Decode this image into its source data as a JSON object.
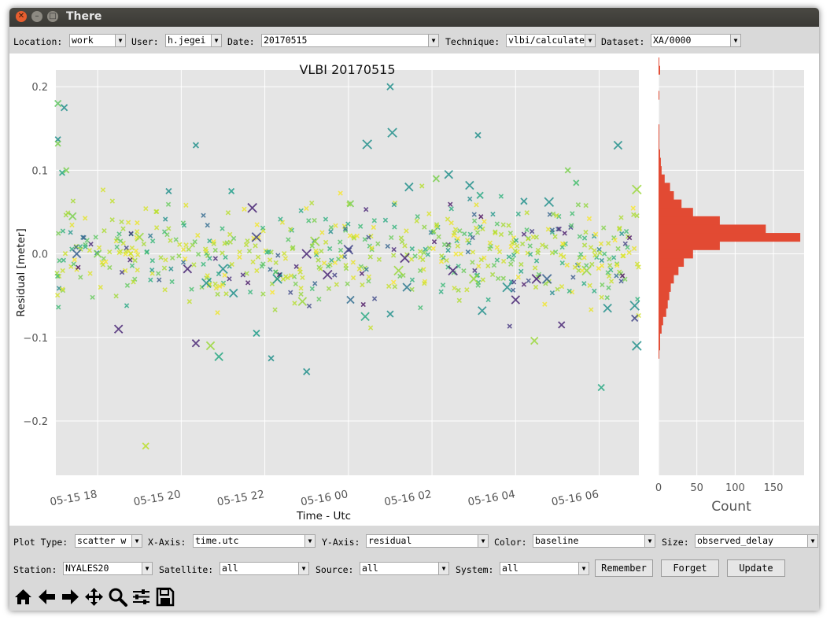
{
  "window": {
    "title": "There"
  },
  "top_bar": {
    "location_label": "Location:",
    "location_value": "work",
    "user_label": "User:",
    "user_value": "h.jegei",
    "date_label": "Date:",
    "date_value": "20170515",
    "technique_label": "Technique:",
    "technique_value": "vlbi/calculate",
    "dataset_label": "Dataset:",
    "dataset_value": "XA/0000"
  },
  "controls_row1": {
    "plot_type_label": "Plot Type:",
    "plot_type_value": "scatter w",
    "xaxis_label": "X-Axis:",
    "xaxis_value": "time.utc",
    "yaxis_label": "Y-Axis:",
    "yaxis_value": "residual",
    "color_label": "Color:",
    "color_value": "baseline",
    "size_label": "Size:",
    "size_value": "observed_delay"
  },
  "controls_row2": {
    "station_label": "Station:",
    "station_value": "NYALES20",
    "satellite_label": "Satellite:",
    "satellite_value": "all",
    "source_label": "Source:",
    "source_value": "all",
    "system_label": "System:",
    "system_value": "all",
    "remember_label": "Remember",
    "forget_label": "Forget",
    "update_label": "Update"
  },
  "toolbar": {
    "home": "home-icon",
    "back": "arrow-left-icon",
    "forward": "arrow-right-icon",
    "pan": "pan-icon",
    "zoom": "zoom-icon",
    "configure": "sliders-icon",
    "save": "save-icon"
  },
  "chart_data": [
    {
      "type": "scatter",
      "title": "VLBI 20170515",
      "xlabel": "Time - Utc",
      "ylabel": "Residual [meter]",
      "x_tick_labels": [
        "05-15 18",
        "05-15 20",
        "05-15 22",
        "05-16 00",
        "05-16 02",
        "05-16 04",
        "05-16 06"
      ],
      "x_tick_hours": [
        18,
        20,
        22,
        24,
        26,
        28,
        30
      ],
      "xlim_hours": [
        17.0,
        30.95
      ],
      "y_ticks": [
        0.2,
        0.1,
        0.0,
        -0.1,
        -0.2
      ],
      "y_tick_labels": [
        "0.2",
        "0.1",
        "0.0",
        "−0.1",
        "−0.2"
      ],
      "ylim": [
        -0.265,
        0.22
      ],
      "grid": true,
      "marker": "x",
      "colormap": "viridis",
      "points": [
        [
          17.05,
          0.18,
          0.75,
          5
        ],
        [
          17.2,
          0.175,
          0.5,
          5
        ],
        [
          17.05,
          0.137,
          0.5,
          4
        ],
        [
          17.05,
          0.132,
          0.8,
          4
        ],
        [
          17.15,
          0.097,
          0.6,
          4
        ],
        [
          17.25,
          0.1,
          0.8,
          4
        ],
        [
          19.15,
          -0.23,
          0.9,
          5
        ],
        [
          20.35,
          0.13,
          0.5,
          4
        ],
        [
          21.8,
          -0.095,
          0.55,
          5
        ],
        [
          21.2,
          0.075,
          0.55,
          4
        ],
        [
          19.7,
          0.075,
          0.5,
          4
        ],
        [
          23.0,
          -0.141,
          0.5,
          5
        ],
        [
          22.15,
          -0.125,
          0.5,
          4
        ],
        [
          21.7,
          0.055,
          0.1,
          8
        ],
        [
          20.35,
          -0.107,
          0.1,
          6
        ],
        [
          20.7,
          -0.11,
          0.85,
          7
        ],
        [
          20.9,
          -0.123,
          0.6,
          7
        ],
        [
          18.5,
          -0.09,
          0.1,
          7
        ],
        [
          25.0,
          0.2,
          0.5,
          5
        ],
        [
          24.45,
          0.131,
          0.5,
          8
        ],
        [
          24.05,
          0.06,
          0.8,
          5
        ],
        [
          25.05,
          0.145,
          0.5,
          8
        ],
        [
          26.4,
          0.095,
          0.5,
          7
        ],
        [
          25.45,
          0.08,
          0.5,
          7
        ],
        [
          26.1,
          0.09,
          0.8,
          5
        ],
        [
          27.15,
          0.07,
          0.6,
          5
        ],
        [
          27.1,
          0.142,
          0.5,
          4
        ],
        [
          26.9,
          0.082,
          0.5,
          7
        ],
        [
          28.2,
          0.063,
          0.5,
          5
        ],
        [
          28.8,
          0.062,
          0.5,
          8
        ],
        [
          29.25,
          0.1,
          0.8,
          4
        ],
        [
          29.45,
          0.085,
          0.7,
          4
        ],
        [
          30.45,
          0.13,
          0.5,
          7
        ],
        [
          30.9,
          0.077,
          0.85,
          8
        ],
        [
          30.05,
          -0.16,
          0.6,
          5
        ],
        [
          30.9,
          -0.11,
          0.5,
          8
        ],
        [
          30.85,
          -0.062,
          0.5,
          8
        ],
        [
          30.85,
          -0.077,
          0.2,
          5
        ],
        [
          24.4,
          -0.075,
          0.6,
          7
        ],
        [
          28.0,
          -0.055,
          0.1,
          7
        ],
        [
          28.5,
          -0.03,
          0.1,
          8
        ],
        [
          28.45,
          -0.104,
          0.85,
          6
        ],
        [
          27.2,
          -0.068,
          0.5,
          7
        ],
        [
          30.2,
          -0.065,
          0.5,
          7
        ],
        [
          25.0,
          -0.072,
          0.5,
          5
        ],
        [
          29.1,
          -0.085,
          0.1,
          5
        ],
        [
          27.8,
          -0.04,
          0.5,
          8
        ],
        [
          28.75,
          -0.03,
          0.3,
          8
        ],
        [
          24.05,
          -0.055,
          0.35,
          6
        ],
        [
          25.4,
          -0.04,
          0.4,
          7
        ],
        [
          21.25,
          -0.047,
          0.5,
          7
        ],
        [
          22.9,
          -0.057,
          0.85,
          7
        ],
        [
          20.6,
          -0.035,
          0.5,
          8
        ],
        [
          20.15,
          -0.018,
          0.1,
          7
        ],
        [
          22.3,
          -0.03,
          0.5,
          8
        ],
        [
          23.5,
          -0.025,
          0.1,
          8
        ],
        [
          25.35,
          -0.005,
          0.1,
          8
        ],
        [
          24.0,
          0.005,
          0.2,
          8
        ],
        [
          23.0,
          0.0,
          0.1,
          8
        ],
        [
          21.8,
          0.02,
          0.2,
          8
        ],
        [
          26.5,
          -0.02,
          0.1,
          8
        ],
        [
          17.5,
          0.0,
          0.3,
          7
        ],
        [
          17.4,
          0.045,
          0.8,
          6
        ],
        [
          18.0,
          0.0,
          0.8,
          6
        ],
        [
          21.0,
          -0.018,
          0.5,
          8
        ],
        [
          25.2,
          -0.02,
          0.85,
          8
        ],
        [
          27.0,
          -0.03,
          0.85,
          8
        ],
        [
          29.7,
          -0.02,
          0.85,
          8
        ],
        [
          23.2,
          0.015,
          0.85,
          8
        ],
        [
          19.0,
          0.02,
          0.85,
          7
        ]
      ],
      "bulk_points": {
        "count": 600,
        "x_range_hours": [
          17.0,
          30.95
        ],
        "y_center": 0.0,
        "y_spread": 0.03
      }
    },
    {
      "type": "bar",
      "orientation": "horizontal",
      "xlabel": "Count",
      "x_ticks": [
        0,
        50,
        100,
        150
      ],
      "xlim": [
        0,
        190
      ],
      "ylim": [
        -0.265,
        0.22
      ],
      "color": "#e24a33",
      "bin_start": -0.125,
      "bin_width": 0.01,
      "counts": [
        1,
        2,
        2,
        4,
        6,
        10,
        12,
        14,
        16,
        20,
        26,
        33,
        45,
        80,
        185,
        140,
        80,
        45,
        30,
        20,
        15,
        8,
        4,
        3,
        2,
        1,
        1,
        1,
        0,
        0,
        0,
        1,
        0,
        0,
        2,
        1,
        0,
        0,
        0,
        0,
        0,
        0,
        0,
        0,
        0,
        0,
        0,
        0,
        0,
        0,
        0,
        1
      ]
    }
  ]
}
